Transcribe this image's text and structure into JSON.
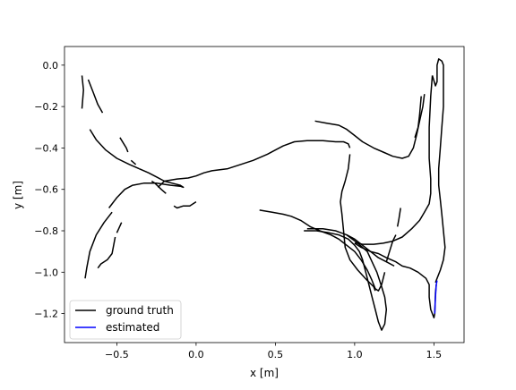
{
  "chart_data": {
    "type": "line",
    "title": "",
    "xlabel": "x [m]",
    "ylabel": "y [m]",
    "xlim": [
      -0.83,
      1.69
    ],
    "ylim": [
      -1.34,
      0.09
    ],
    "xticks": [
      -0.5,
      0.0,
      0.5,
      1.0,
      1.5
    ],
    "xtick_labels": [
      "−0.5",
      "0.0",
      "0.5",
      "1.0",
      "1.5"
    ],
    "yticks": [
      0.0,
      -0.2,
      -0.4,
      -0.6,
      -0.8,
      -1.0,
      -1.2
    ],
    "ytick_labels": [
      "0.0",
      "−0.2",
      "−0.4",
      "−0.6",
      "−0.8",
      "−1.0",
      "−1.2"
    ],
    "grid": false,
    "legend_position": "lower-left",
    "series": [
      {
        "name": "ground truth",
        "color": "#000000",
        "segments": [
          [
            [
              -0.72,
              -0.05
            ],
            [
              -0.71,
              -0.12
            ],
            [
              -0.72,
              -0.21
            ]
          ],
          [
            [
              -0.68,
              -0.07
            ],
            [
              -0.65,
              -0.13
            ],
            [
              -0.62,
              -0.19
            ],
            [
              -0.59,
              -0.23
            ]
          ],
          [
            [
              -0.67,
              -0.31
            ],
            [
              -0.63,
              -0.36
            ],
            [
              -0.57,
              -0.41
            ],
            [
              -0.5,
              -0.45
            ],
            [
              -0.42,
              -0.48
            ],
            [
              -0.36,
              -0.5
            ]
          ],
          [
            [
              -0.36,
              -0.5
            ],
            [
              -0.3,
              -0.52
            ],
            [
              -0.25,
              -0.54
            ],
            [
              -0.2,
              -0.56
            ],
            [
              -0.15,
              -0.57
            ],
            [
              -0.1,
              -0.58
            ],
            [
              -0.08,
              -0.59
            ],
            [
              -0.1,
              -0.585
            ],
            [
              -0.16,
              -0.58
            ],
            [
              -0.25,
              -0.57
            ],
            [
              -0.33,
              -0.57
            ],
            [
              -0.4,
              -0.58
            ],
            [
              -0.45,
              -0.6
            ],
            [
              -0.5,
              -0.64
            ],
            [
              -0.55,
              -0.69
            ]
          ],
          [
            [
              -0.24,
              -0.59
            ],
            [
              -0.2,
              -0.56
            ],
            [
              -0.12,
              -0.55
            ],
            [
              -0.05,
              -0.545
            ],
            [
              0.0,
              -0.535
            ],
            [
              0.05,
              -0.52
            ],
            [
              0.1,
              -0.51
            ],
            [
              0.2,
              -0.5
            ],
            [
              0.28,
              -0.48
            ],
            [
              0.36,
              -0.46
            ],
            [
              0.45,
              -0.43
            ],
            [
              0.5,
              -0.41
            ],
            [
              0.55,
              -0.39
            ],
            [
              0.62,
              -0.37
            ],
            [
              0.7,
              -0.365
            ],
            [
              0.8,
              -0.365
            ],
            [
              0.88,
              -0.37
            ],
            [
              0.93,
              -0.37
            ],
            [
              0.96,
              -0.38
            ],
            [
              0.97,
              -0.4
            ]
          ],
          [
            [
              0.97,
              -0.43
            ],
            [
              0.96,
              -0.5
            ],
            [
              0.94,
              -0.56
            ],
            [
              0.92,
              -0.61
            ],
            [
              0.91,
              -0.66
            ],
            [
              0.92,
              -0.72
            ],
            [
              0.93,
              -0.8
            ],
            [
              0.94,
              -0.88
            ],
            [
              0.97,
              -0.94
            ],
            [
              1.02,
              -0.99
            ],
            [
              1.08,
              -1.04
            ],
            [
              1.12,
              -1.07
            ],
            [
              1.13,
              -1.09
            ]
          ],
          [
            [
              0.75,
              -0.27
            ],
            [
              0.82,
              -0.28
            ],
            [
              0.9,
              -0.29
            ],
            [
              0.95,
              -0.31
            ],
            [
              1.0,
              -0.34
            ],
            [
              1.05,
              -0.37
            ],
            [
              1.12,
              -0.4
            ],
            [
              1.18,
              -0.42
            ],
            [
              1.24,
              -0.44
            ],
            [
              1.3,
              -0.45
            ],
            [
              1.34,
              -0.44
            ],
            [
              1.37,
              -0.4
            ],
            [
              1.39,
              -0.34
            ],
            [
              1.41,
              -0.27
            ],
            [
              1.43,
              -0.2
            ],
            [
              1.44,
              -0.14
            ]
          ],
          [
            [
              1.42,
              -0.15
            ],
            [
              1.41,
              -0.24
            ],
            [
              1.4,
              -0.3
            ],
            [
              1.38,
              -0.35
            ]
          ],
          [
            [
              1.49,
              -0.05
            ],
            [
              1.51,
              -0.1
            ],
            [
              1.52,
              -0.08
            ],
            [
              1.52,
              0.0
            ],
            [
              1.53,
              0.03
            ],
            [
              1.55,
              0.02
            ],
            [
              1.56,
              0.0
            ],
            [
              1.56,
              -0.1
            ],
            [
              1.56,
              -0.2
            ],
            [
              1.55,
              -0.3
            ],
            [
              1.54,
              -0.4
            ],
            [
              1.53,
              -0.5
            ],
            [
              1.53,
              -0.58
            ],
            [
              1.54,
              -0.65
            ],
            [
              1.55,
              -0.72
            ],
            [
              1.56,
              -0.8
            ],
            [
              1.57,
              -0.88
            ],
            [
              1.56,
              -0.94
            ],
            [
              1.54,
              -0.99
            ],
            [
              1.52,
              -1.03
            ],
            [
              1.51,
              -1.05
            ]
          ],
          [
            [
              1.49,
              -0.05
            ],
            [
              1.48,
              -0.15
            ],
            [
              1.47,
              -0.3
            ],
            [
              1.47,
              -0.45
            ],
            [
              1.48,
              -0.55
            ],
            [
              1.48,
              -0.62
            ],
            [
              1.47,
              -0.67
            ],
            [
              1.44,
              -0.71
            ],
            [
              1.41,
              -0.75
            ],
            [
              1.36,
              -0.79
            ],
            [
              1.3,
              -0.83
            ],
            [
              1.24,
              -0.85
            ],
            [
              1.18,
              -0.86
            ],
            [
              1.12,
              -0.865
            ],
            [
              1.05,
              -0.865
            ],
            [
              1.02,
              -0.86
            ],
            [
              1.0,
              -0.86
            ]
          ],
          [
            [
              1.0,
              -0.86
            ],
            [
              1.04,
              -0.88
            ],
            [
              1.1,
              -0.9
            ],
            [
              1.15,
              -0.91
            ],
            [
              1.2,
              -0.93
            ],
            [
              1.26,
              -0.95
            ],
            [
              1.3,
              -0.97
            ],
            [
              1.35,
              -0.98
            ],
            [
              1.4,
              -1.0
            ],
            [
              1.45,
              -1.03
            ],
            [
              1.47,
              -1.06
            ],
            [
              1.47,
              -1.12
            ],
            [
              1.48,
              -1.18
            ],
            [
              1.5,
              -1.22
            ],
            [
              1.505,
              -1.2
            ],
            [
              1.51,
              -1.1
            ],
            [
              1.515,
              -1.06
            ]
          ],
          [
            [
              0.4,
              -0.7
            ],
            [
              0.48,
              -0.71
            ],
            [
              0.55,
              -0.72
            ],
            [
              0.6,
              -0.73
            ],
            [
              0.66,
              -0.75
            ],
            [
              0.72,
              -0.78
            ],
            [
              0.78,
              -0.8
            ],
            [
              0.85,
              -0.82
            ],
            [
              0.9,
              -0.84
            ],
            [
              0.95,
              -0.87
            ],
            [
              1.0,
              -0.9
            ],
            [
              1.04,
              -0.94
            ],
            [
              1.08,
              -0.99
            ],
            [
              1.11,
              -1.04
            ],
            [
              1.13,
              -1.08
            ],
            [
              1.15,
              -1.09
            ],
            [
              1.17,
              -1.06
            ],
            [
              1.19,
              -1.0
            ]
          ],
          [
            [
              0.68,
              -0.8
            ],
            [
              0.76,
              -0.8
            ],
            [
              0.84,
              -0.81
            ],
            [
              0.9,
              -0.82
            ],
            [
              0.96,
              -0.84
            ],
            [
              1.0,
              -0.87
            ],
            [
              1.03,
              -0.9
            ],
            [
              1.05,
              -0.94
            ],
            [
              1.07,
              -1.0
            ],
            [
              1.09,
              -1.06
            ],
            [
              1.11,
              -1.12
            ],
            [
              1.13,
              -1.18
            ],
            [
              1.15,
              -1.24
            ],
            [
              1.17,
              -1.28
            ],
            [
              1.19,
              -1.25
            ],
            [
              1.2,
              -1.18
            ],
            [
              1.19,
              -1.12
            ],
            [
              1.17,
              -1.07
            ],
            [
              1.14,
              -1.0
            ],
            [
              1.11,
              -0.95
            ],
            [
              1.08,
              -0.9
            ],
            [
              1.02,
              -0.86
            ],
            [
              0.95,
              -0.82
            ],
            [
              0.88,
              -0.8
            ],
            [
              0.8,
              -0.79
            ],
            [
              0.7,
              -0.79
            ]
          ],
          [
            [
              0.95,
              -0.82
            ],
            [
              1.0,
              -0.84
            ],
            [
              1.05,
              -0.87
            ],
            [
              1.1,
              -0.9
            ],
            [
              1.15,
              -0.93
            ],
            [
              1.2,
              -0.95
            ],
            [
              1.25,
              -0.97
            ]
          ],
          [
            [
              1.2,
              -0.95
            ],
            [
              1.22,
              -0.9
            ],
            [
              1.24,
              -0.85
            ],
            [
              1.26,
              -0.82
            ]
          ],
          [
            [
              1.27,
              -0.78
            ],
            [
              1.28,
              -0.74
            ],
            [
              1.29,
              -0.69
            ]
          ],
          [
            [
              -0.14,
              -0.68
            ],
            [
              -0.12,
              -0.69
            ],
            [
              -0.08,
              -0.68
            ],
            [
              -0.04,
              -0.68
            ],
            [
              0.0,
              -0.66
            ]
          ],
          [
            [
              -0.19,
              -0.62
            ],
            [
              -0.22,
              -0.6
            ],
            [
              -0.26,
              -0.57
            ],
            [
              -0.28,
              -0.56
            ]
          ],
          [
            [
              -0.7,
              -1.03
            ],
            [
              -0.69,
              -0.98
            ],
            [
              -0.67,
              -0.9
            ],
            [
              -0.63,
              -0.82
            ],
            [
              -0.58,
              -0.76
            ],
            [
              -0.53,
              -0.71
            ]
          ],
          [
            [
              -0.47,
              -0.76
            ],
            [
              -0.5,
              -0.81
            ]
          ],
          [
            [
              -0.51,
              -0.83
            ],
            [
              -0.53,
              -0.91
            ],
            [
              -0.56,
              -0.94
            ],
            [
              -0.6,
              -0.96
            ],
            [
              -0.62,
              -0.98
            ]
          ],
          [
            [
              -0.48,
              -0.35
            ],
            [
              -0.44,
              -0.4
            ],
            [
              -0.43,
              -0.42
            ]
          ],
          [
            [
              -0.41,
              -0.46
            ],
            [
              -0.38,
              -0.48
            ]
          ]
        ]
      },
      {
        "name": "estimated",
        "color": "#0000ff",
        "segments": [
          [
            [
              1.505,
              -1.2
            ],
            [
              1.51,
              -1.12
            ],
            [
              1.515,
              -1.06
            ],
            [
              1.52,
              -1.04
            ]
          ]
        ]
      }
    ]
  }
}
